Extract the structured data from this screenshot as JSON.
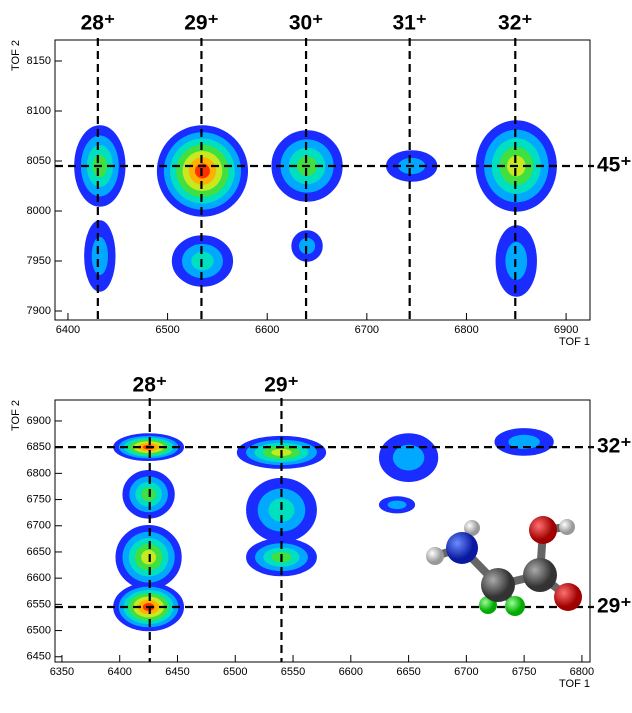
{
  "chart_data": [
    {
      "type": "contour",
      "x_label": "TOF 1",
      "y_label": "TOF 2",
      "xlim": [
        6387,
        6924
      ],
      "ylim": [
        7891,
        8171
      ],
      "xticks": [
        6400,
        6500,
        6600,
        6700,
        6800,
        6900
      ],
      "yticks": [
        7900,
        7950,
        8000,
        8050,
        8100,
        8150
      ],
      "level_colors": [
        "#1a2cff",
        "#00a8ff",
        "#00e0c0",
        "#40e040",
        "#c8e820",
        "#ffb000",
        "#ff3000"
      ],
      "line_color": "#000000",
      "vlines": [
        {
          "value": 6430,
          "label": "28⁺"
        },
        {
          "value": 6534,
          "label": "29⁺"
        },
        {
          "value": 6639,
          "label": "30⁺"
        },
        {
          "value": 6743,
          "label": "31⁺"
        },
        {
          "value": 6849,
          "label": "32⁺"
        }
      ],
      "hlines": [
        {
          "value": 8045,
          "label": "45⁺"
        }
      ],
      "islands": [
        {
          "x": 6432,
          "y": 8045,
          "rx": 25,
          "ry": 40,
          "level": 3
        },
        {
          "x": 6432,
          "y": 7955,
          "rx": 15,
          "ry": 35,
          "level": 1
        },
        {
          "x": 6535,
          "y": 8040,
          "rx": 45,
          "ry": 45,
          "level": 6
        },
        {
          "x": 6535,
          "y": 7950,
          "rx": 30,
          "ry": 25,
          "level": 2
        },
        {
          "x": 6640,
          "y": 8045,
          "rx": 35,
          "ry": 35,
          "level": 3
        },
        {
          "x": 6640,
          "y": 7965,
          "rx": 15,
          "ry": 15,
          "level": 1
        },
        {
          "x": 6745,
          "y": 8045,
          "rx": 25,
          "ry": 15,
          "level": 1
        },
        {
          "x": 6850,
          "y": 8045,
          "rx": 40,
          "ry": 45,
          "level": 4
        },
        {
          "x": 6850,
          "y": 7950,
          "rx": 20,
          "ry": 35,
          "level": 1
        }
      ]
    },
    {
      "type": "contour",
      "x_label": "TOF 1",
      "y_label": "TOF 2",
      "xlim": [
        6344,
        6807
      ],
      "ylim": [
        6440,
        6940
      ],
      "xticks": [
        6350,
        6400,
        6450,
        6500,
        6550,
        6600,
        6650,
        6700,
        6750,
        6800
      ],
      "yticks": [
        6450,
        6500,
        6550,
        6600,
        6650,
        6700,
        6750,
        6800,
        6850,
        6900
      ],
      "level_colors": [
        "#1a2cff",
        "#00a8ff",
        "#00e0c0",
        "#40e040",
        "#c8e820",
        "#ffb000",
        "#ff3000"
      ],
      "line_color": "#000000",
      "vlines": [
        {
          "value": 6426,
          "label": "28⁺"
        },
        {
          "value": 6540,
          "label": "29⁺"
        }
      ],
      "hlines": [
        {
          "value": 6850,
          "label": "32⁺"
        },
        {
          "value": 6545,
          "label": "29⁺"
        }
      ],
      "islands": [
        {
          "x": 6425,
          "y": 6850,
          "rx": 30,
          "ry": 25,
          "level": 6
        },
        {
          "x": 6425,
          "y": 6760,
          "rx": 22,
          "ry": 45,
          "level": 3
        },
        {
          "x": 6425,
          "y": 6640,
          "rx": 28,
          "ry": 60,
          "level": 4
        },
        {
          "x": 6425,
          "y": 6545,
          "rx": 30,
          "ry": 45,
          "level": 6
        },
        {
          "x": 6540,
          "y": 6840,
          "rx": 38,
          "ry": 30,
          "level": 4
        },
        {
          "x": 6540,
          "y": 6730,
          "rx": 30,
          "ry": 60,
          "level": 2
        },
        {
          "x": 6540,
          "y": 6640,
          "rx": 30,
          "ry": 35,
          "level": 3
        },
        {
          "x": 6650,
          "y": 6830,
          "rx": 25,
          "ry": 45,
          "level": 1
        },
        {
          "x": 6640,
          "y": 6740,
          "rx": 15,
          "ry": 15,
          "level": 1
        },
        {
          "x": 6750,
          "y": 6860,
          "rx": 25,
          "ry": 25,
          "level": 1
        }
      ]
    }
  ]
}
